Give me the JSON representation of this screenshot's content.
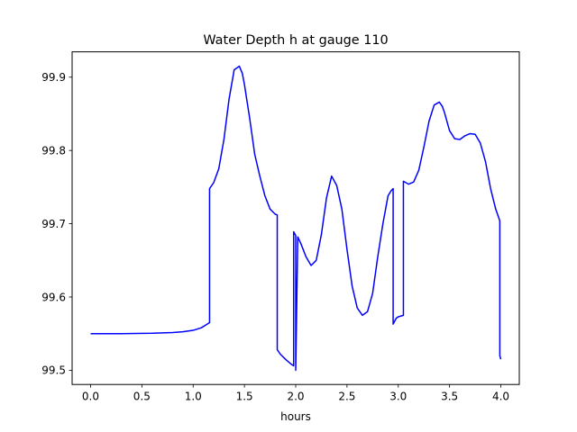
{
  "chart_data": {
    "type": "line",
    "title": "Water Depth h at gauge 110",
    "xlabel": "hours",
    "ylabel": "",
    "xlim": [
      -0.18,
      4.18
    ],
    "ylim": [
      99.4806,
      99.9346
    ],
    "xticks": [
      0.0,
      0.5,
      1.0,
      1.5,
      2.0,
      2.5,
      3.0,
      3.5,
      4.0
    ],
    "xtick_labels": [
      "0.0",
      "0.5",
      "1.0",
      "1.5",
      "2.0",
      "2.5",
      "3.0",
      "3.5",
      "4.0"
    ],
    "yticks": [
      99.5,
      99.6,
      99.7,
      99.8,
      99.9
    ],
    "ytick_labels": [
      "99.5",
      "99.6",
      "99.7",
      "99.8",
      "99.9"
    ],
    "grid": false,
    "series": [
      {
        "color": "#0000ff",
        "x": [
          0.0,
          0.3,
          0.6,
          0.8,
          0.9,
          1.0,
          1.08,
          1.16,
          1.16,
          1.2,
          1.25,
          1.3,
          1.35,
          1.4,
          1.45,
          1.48,
          1.5,
          1.55,
          1.6,
          1.65,
          1.7,
          1.75,
          1.8,
          1.82,
          1.82,
          1.85,
          1.9,
          1.95,
          1.98,
          1.98,
          2.0,
          2.0,
          2.02,
          2.05,
          2.1,
          2.15,
          2.2,
          2.25,
          2.3,
          2.35,
          2.4,
          2.45,
          2.5,
          2.55,
          2.6,
          2.65,
          2.7,
          2.75,
          2.8,
          2.85,
          2.9,
          2.93,
          2.95,
          2.95,
          2.98,
          3.0,
          3.05,
          3.05,
          3.1,
          3.15,
          3.2,
          3.25,
          3.3,
          3.35,
          3.4,
          3.43,
          3.45,
          3.5,
          3.55,
          3.6,
          3.65,
          3.7,
          3.75,
          3.8,
          3.85,
          3.9,
          3.95,
          3.99,
          3.99,
          4.0
        ],
        "y": [
          99.55,
          99.55,
          99.5505,
          99.5515,
          99.5525,
          99.5545,
          99.558,
          99.565,
          99.748,
          99.756,
          99.775,
          99.815,
          99.87,
          99.91,
          99.915,
          99.905,
          99.89,
          99.845,
          99.795,
          99.765,
          99.738,
          99.72,
          99.713,
          99.712,
          99.528,
          99.522,
          99.515,
          99.509,
          99.506,
          99.689,
          99.684,
          99.5,
          99.682,
          99.673,
          99.655,
          99.643,
          99.65,
          99.685,
          99.735,
          99.765,
          99.752,
          99.72,
          99.665,
          99.615,
          99.585,
          99.575,
          99.58,
          99.605,
          99.655,
          99.7,
          99.738,
          99.745,
          99.748,
          99.563,
          99.571,
          99.573,
          99.575,
          99.758,
          99.754,
          99.757,
          99.773,
          99.805,
          99.84,
          99.862,
          99.866,
          99.86,
          99.852,
          99.827,
          99.816,
          99.815,
          99.82,
          99.823,
          99.822,
          99.81,
          99.785,
          99.748,
          99.72,
          99.704,
          99.52,
          99.515
        ]
      }
    ]
  }
}
